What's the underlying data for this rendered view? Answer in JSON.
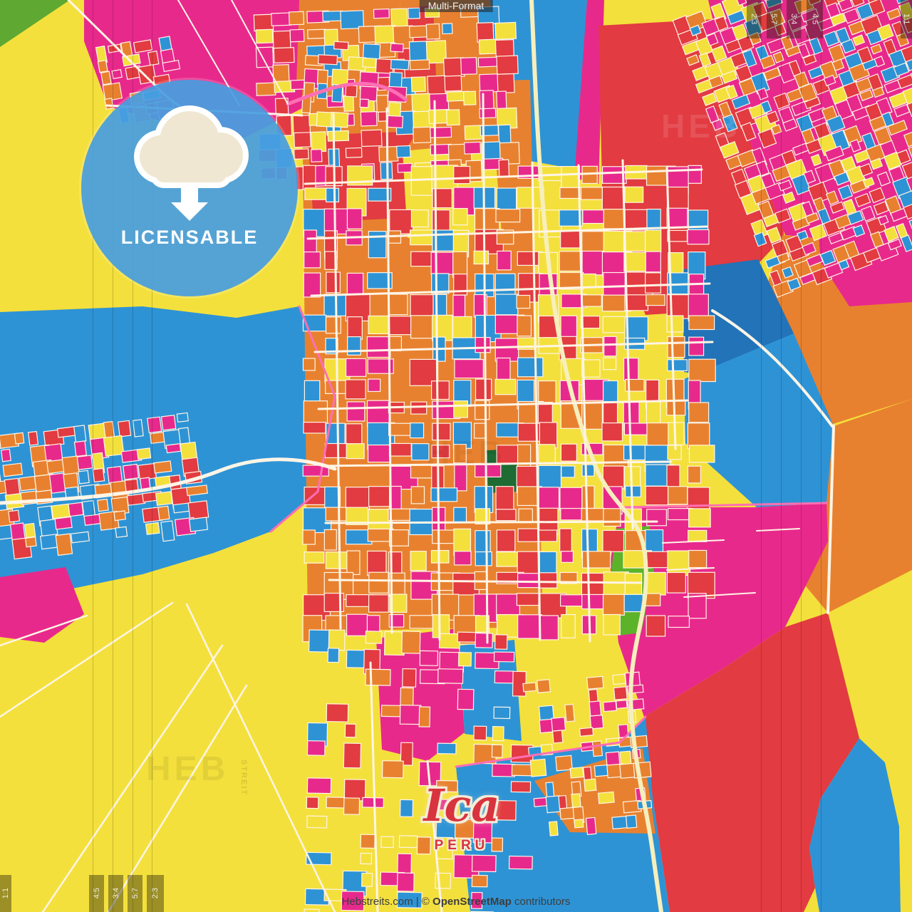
{
  "product": {
    "format_label": "Multi-Format"
  },
  "badge": {
    "label": "LICENSABLE",
    "icon": "cloud-download-icon"
  },
  "map_label": {
    "city": "Ica",
    "country": "PERU"
  },
  "credit": {
    "prefix": "Hebstreits.com | © ",
    "linked": "OpenStreetMap",
    "suffix": " contributors"
  },
  "watermarks": {
    "brand_short": "HEB",
    "brand_rest": "STREIT"
  },
  "aspect_markers": {
    "bottom_left": [
      "1:1",
      "4:5",
      "3:4",
      "5:7",
      "2:3"
    ],
    "top_right": [
      "2:3",
      "5:7",
      "3:4",
      "4:5",
      "1:1"
    ]
  },
  "palette": {
    "magenta": "#E8298C",
    "red": "#E23B41",
    "orange": "#E8812F",
    "yellow": "#F4E03C",
    "blue": "#2E93D5",
    "blue_dark": "#2273B8",
    "green": "#5CB32A",
    "green_dark": "#1E6B33",
    "green_corner": "#5FA832",
    "road": "#FFF5E6",
    "road_pink": "#FF6FB4",
    "highway": "#F6EFBD",
    "badge_blue": "#4A9EE0",
    "badge_cloud": "#EFE7D2",
    "label_red": "#D8333E",
    "label_halo": "#F4EDD8",
    "credit_text": "#3D3D3D"
  }
}
